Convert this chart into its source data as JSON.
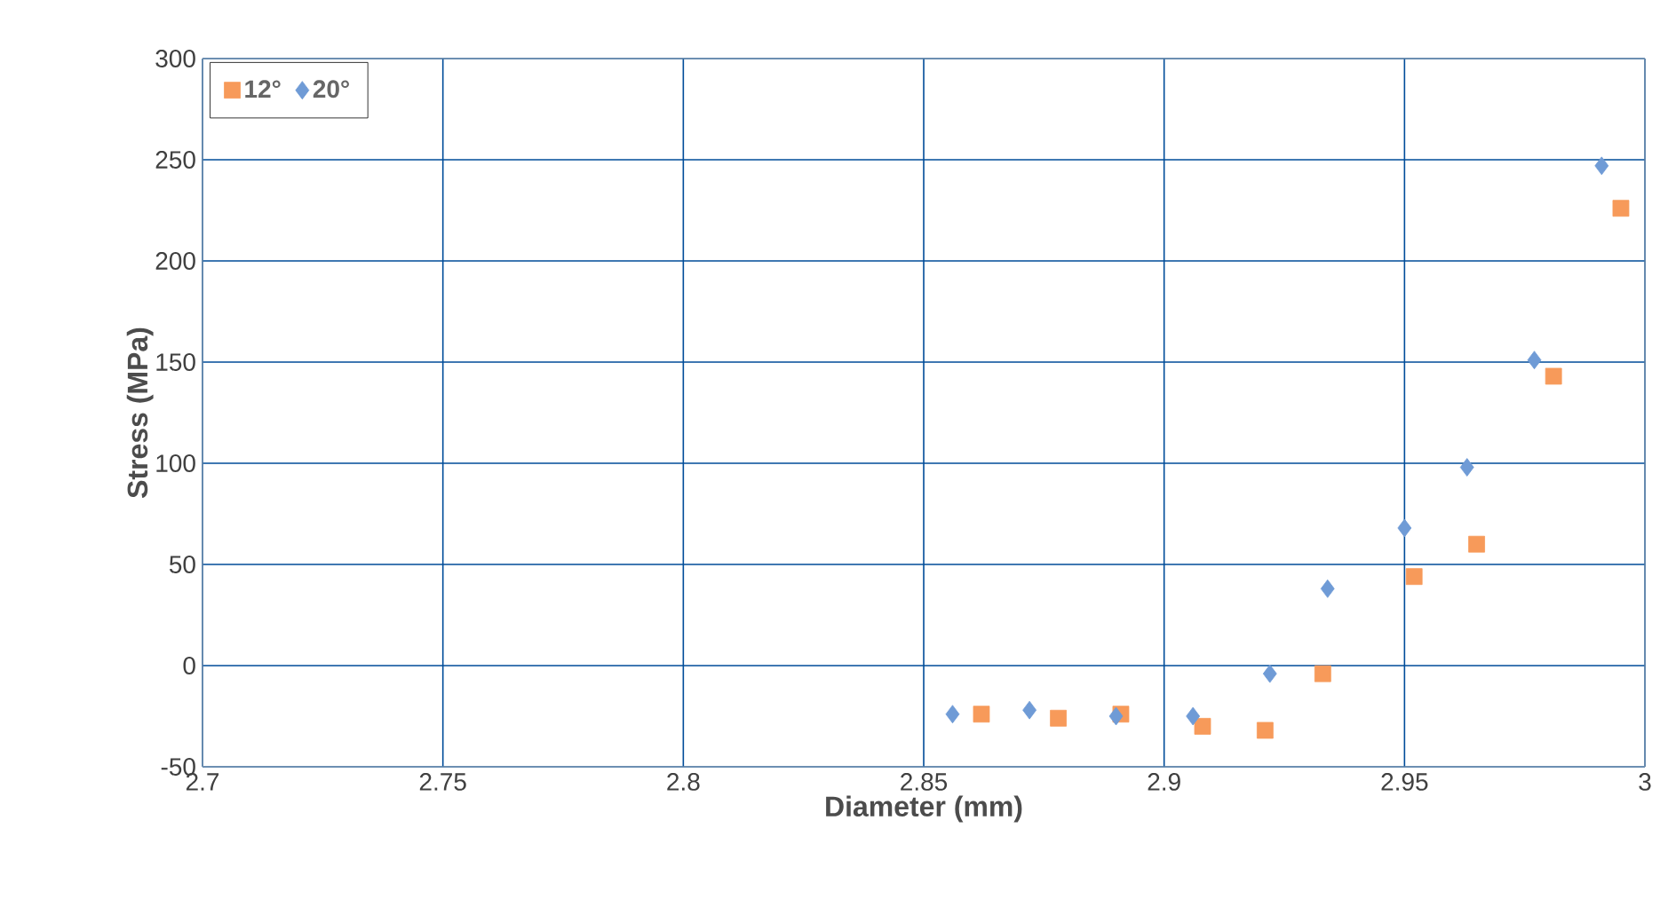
{
  "chart_data": {
    "type": "scatter",
    "xlabel": "Diameter (mm)",
    "ylabel": "Stress (MPa)",
    "xlim": [
      2.7,
      3.0
    ],
    "xticks": [
      2.7,
      2.75,
      2.8,
      2.85,
      2.9,
      2.95,
      3
    ],
    "ylim": [
      -50,
      300
    ],
    "yticks": [
      -50,
      0,
      50,
      100,
      150,
      200,
      250,
      300
    ],
    "grid": true,
    "legend": "top left",
    "series": [
      {
        "name": "12°",
        "color": "#f79a5a",
        "marker": "square",
        "x": [
          2.862,
          2.878,
          2.891,
          2.908,
          2.921,
          2.933,
          2.952,
          2.965,
          2.981,
          2.995
        ],
        "values": [
          -24,
          -26,
          -24,
          -30,
          -32,
          -4,
          44,
          60,
          143,
          226
        ]
      },
      {
        "name": "20°",
        "color": "#6f9bd6",
        "marker": "diamond",
        "x": [
          2.856,
          2.872,
          2.89,
          2.906,
          2.922,
          2.934,
          2.95,
          2.963,
          2.977,
          2.991
        ],
        "values": [
          -24,
          -22,
          -25,
          -25,
          -4,
          38,
          68,
          98,
          151,
          247
        ]
      }
    ]
  }
}
